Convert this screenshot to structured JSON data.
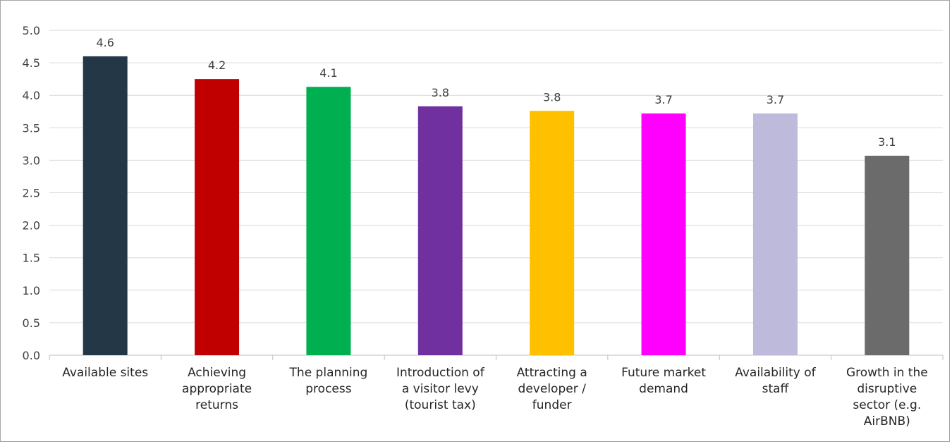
{
  "chart_data": {
    "type": "bar",
    "title": "",
    "xlabel": "",
    "ylabel": "",
    "ylim": [
      0,
      5
    ],
    "yticks": [
      "0.0",
      "0.5",
      "1.0",
      "1.5",
      "2.0",
      "2.5",
      "3.0",
      "3.5",
      "4.0",
      "4.5",
      "5.0"
    ],
    "grid": true,
    "legend": "none",
    "categories": [
      [
        "Available sites"
      ],
      [
        "Achieving",
        "appropriate",
        "returns"
      ],
      [
        "The planning",
        "process"
      ],
      [
        "Introduction of",
        "a visitor levy",
        "(tourist tax)"
      ],
      [
        "Attracting a",
        "developer /",
        "funder"
      ],
      [
        "Future market",
        "demand"
      ],
      [
        "Availability of",
        "staff"
      ],
      [
        "Growth in the",
        "disruptive",
        "sector (e.g.",
        "AirBNB)"
      ]
    ],
    "values": [
      4.6,
      4.25,
      4.13,
      3.83,
      3.76,
      3.72,
      3.72,
      3.07
    ],
    "data_labels": [
      "4.6",
      "4.2",
      "4.1",
      "3.8",
      "3.8",
      "3.7",
      "3.7",
      "3.1"
    ],
    "colors": [
      "#243746",
      "#c00000",
      "#00b050",
      "#7030a0",
      "#ffc000",
      "#ff00ff",
      "#bdbadc",
      "#6b6b6b"
    ]
  }
}
